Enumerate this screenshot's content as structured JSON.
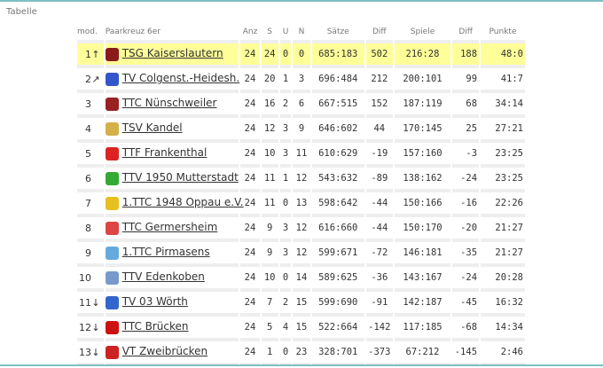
{
  "title": "Tabelle",
  "columns": {
    "mod": "mod.",
    "team": "Paarkreuz 6er",
    "anz": "Anz",
    "s": "S",
    "u": "U",
    "n": "N",
    "saetze": "Sätze",
    "diff1": "Diff",
    "spiele": "Spiele",
    "diff2": "Diff",
    "punkte": "Punkte"
  },
  "highlight_color": "#ffff99",
  "rows": [
    {
      "rank": "1",
      "mod": "↑",
      "team": "TSG Kaiserslautern",
      "logo_color": "#8b1a1a",
      "anz": "24",
      "s": "24",
      "u": "0",
      "n": "0",
      "saetze": "685:183",
      "diff1": "502",
      "spiele": "216:28",
      "diff2": "188",
      "punkte": "48:0"
    },
    {
      "rank": "2",
      "mod": "↗",
      "team": "TV Colgenst.-Heidesh.",
      "logo_color": "#3355cc",
      "anz": "24",
      "s": "20",
      "u": "1",
      "n": "3",
      "saetze": "696:484",
      "diff1": "212",
      "spiele": "200:101",
      "diff2": "99",
      "punkte": "41:7"
    },
    {
      "rank": "3",
      "mod": "",
      "team": "TTC Nünschweiler",
      "logo_color": "#992222",
      "anz": "24",
      "s": "16",
      "u": "2",
      "n": "6",
      "saetze": "667:515",
      "diff1": "152",
      "spiele": "187:119",
      "diff2": "68",
      "punkte": "34:14"
    },
    {
      "rank": "4",
      "mod": "",
      "team": "TSV Kandel",
      "logo_color": "#d4b048",
      "anz": "24",
      "s": "12",
      "u": "3",
      "n": "9",
      "saetze": "646:602",
      "diff1": "44",
      "spiele": "170:145",
      "diff2": "25",
      "punkte": "27:21"
    },
    {
      "rank": "5",
      "mod": "",
      "team": "TTF Frankenthal",
      "logo_color": "#dd2222",
      "anz": "24",
      "s": "10",
      "u": "3",
      "n": "11",
      "saetze": "610:629",
      "diff1": "-19",
      "spiele": "157:160",
      "diff2": "-3",
      "punkte": "23:25"
    },
    {
      "rank": "6",
      "mod": "",
      "team": "TTV 1950 Mutterstadt",
      "logo_color": "#33aa33",
      "anz": "24",
      "s": "11",
      "u": "1",
      "n": "12",
      "saetze": "543:632",
      "diff1": "-89",
      "spiele": "138:162",
      "diff2": "-24",
      "punkte": "23:25"
    },
    {
      "rank": "7",
      "mod": "",
      "team": "1.TTC 1948 Oppau e.V.",
      "logo_color": "#e6c020",
      "anz": "24",
      "s": "11",
      "u": "0",
      "n": "13",
      "saetze": "598:642",
      "diff1": "-44",
      "spiele": "150:166",
      "diff2": "-16",
      "punkte": "22:26"
    },
    {
      "rank": "8",
      "mod": "",
      "team": "TTC Germersheim",
      "logo_color": "#dd4444",
      "anz": "24",
      "s": "9",
      "u": "3",
      "n": "12",
      "saetze": "616:660",
      "diff1": "-44",
      "spiele": "150:170",
      "diff2": "-20",
      "punkte": "21:27"
    },
    {
      "rank": "9",
      "mod": "",
      "team": "1.TTC Pirmasens",
      "logo_color": "#66aadd",
      "anz": "24",
      "s": "9",
      "u": "3",
      "n": "12",
      "saetze": "599:671",
      "diff1": "-72",
      "spiele": "146:181",
      "diff2": "-35",
      "punkte": "21:27"
    },
    {
      "rank": "10",
      "mod": "",
      "team": "TTV Edenkoben",
      "logo_color": "#7799cc",
      "anz": "24",
      "s": "10",
      "u": "0",
      "n": "14",
      "saetze": "589:625",
      "diff1": "-36",
      "spiele": "143:167",
      "diff2": "-24",
      "punkte": "20:28"
    },
    {
      "rank": "11",
      "mod": "↓",
      "team": "TV 03 Wörth",
      "logo_color": "#3366cc",
      "anz": "24",
      "s": "7",
      "u": "2",
      "n": "15",
      "saetze": "599:690",
      "diff1": "-91",
      "spiele": "142:187",
      "diff2": "-45",
      "punkte": "16:32"
    },
    {
      "rank": "12",
      "mod": "↓",
      "team": "TTC Brücken",
      "logo_color": "#cc1111",
      "anz": "24",
      "s": "5",
      "u": "4",
      "n": "15",
      "saetze": "522:664",
      "diff1": "-142",
      "spiele": "117:185",
      "diff2": "-68",
      "punkte": "14:34"
    },
    {
      "rank": "13",
      "mod": "↓",
      "team": "VT Zweibrücken",
      "logo_color": "#cc2222",
      "anz": "24",
      "s": "1",
      "u": "0",
      "n": "23",
      "saetze": "328:701",
      "diff1": "-373",
      "spiele": "67:212",
      "diff2": "-145",
      "punkte": "2:46"
    }
  ]
}
